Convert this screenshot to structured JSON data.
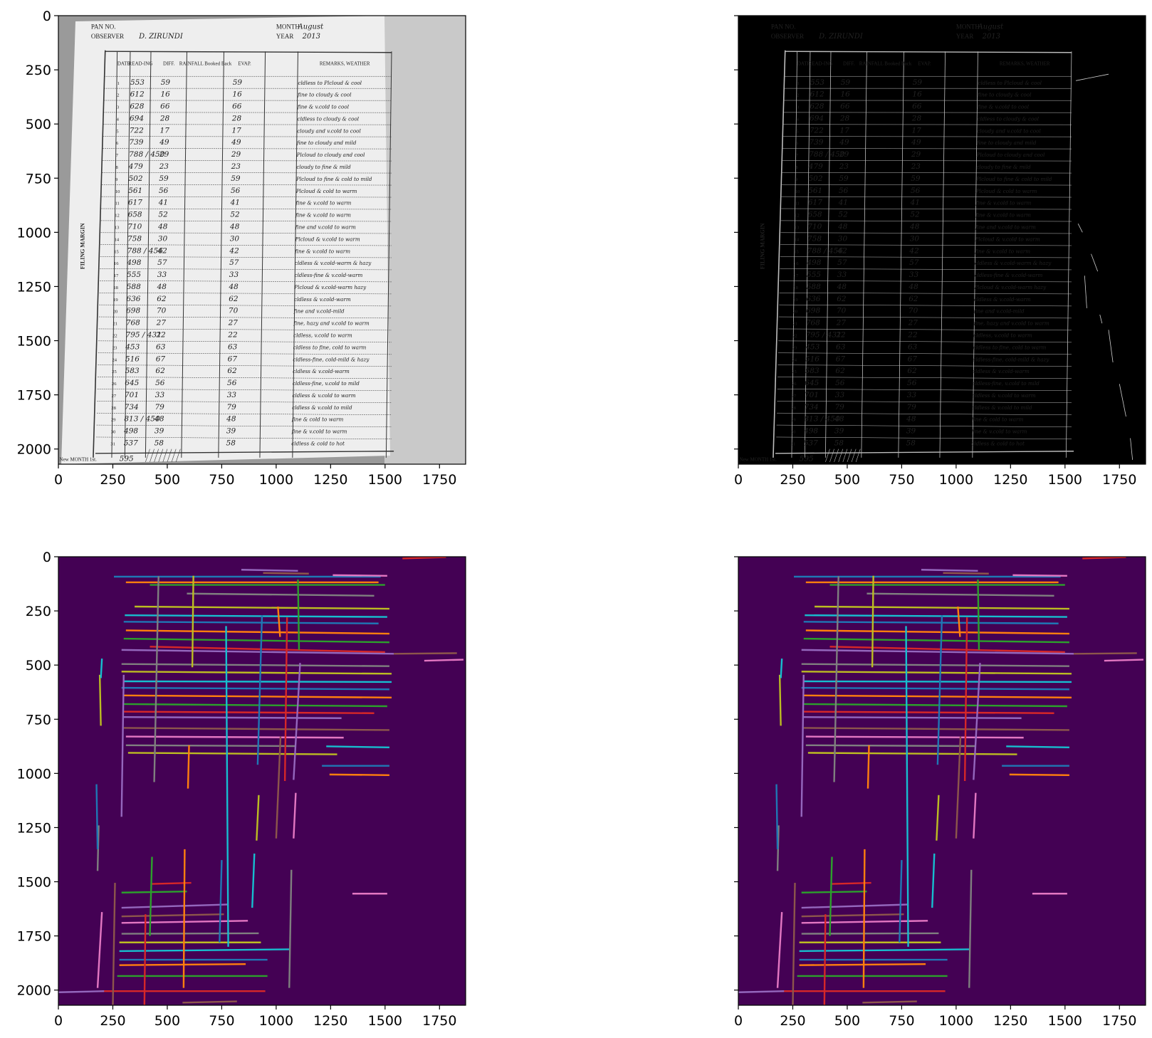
{
  "figure": {
    "layout": "2x2 grid of image panels with matplotlib pixel axes",
    "x_ticks": [
      "0",
      "250",
      "500",
      "750",
      "1000",
      "1250",
      "1500",
      "1750"
    ],
    "y_ticks": [
      "0",
      "250",
      "500",
      "750",
      "1000",
      "1250",
      "1500",
      "1750",
      "2000"
    ],
    "image_extent": {
      "width": 1870,
      "height": 2070
    },
    "panels": [
      {
        "id": "grayscale",
        "kind": "grayscale photo of a handwritten weather register sheet"
      },
      {
        "id": "edges",
        "kind": "edge-detection result, thin white edges on black"
      },
      {
        "id": "hough-lines-1",
        "kind": "detected line segments on dark purple background"
      },
      {
        "id": "hough-lines-2",
        "kind": "detected line segments on dark purple background"
      }
    ],
    "colors": {
      "line_background": "#440154",
      "edge_background": "#000000",
      "segment_palette": [
        "#1f77b4",
        "#ff7f0e",
        "#2ca02c",
        "#d62728",
        "#9467bd",
        "#8c564b",
        "#e377c2",
        "#7f7f7f",
        "#bcbd22",
        "#17becf"
      ]
    }
  },
  "document": {
    "header": {
      "pan_label": "PAN NO.",
      "month_label": "MONTH",
      "month_value": "August",
      "observer_label": "OBSERVER",
      "observer_value": "D. ZIRUNDI",
      "year_label": "YEAR",
      "year_value": "2013"
    },
    "columns": [
      "DATE",
      "READ-ING",
      "DIFF.",
      "RAINFALL Booked Back",
      "EVAP.",
      "REMARKS, WEATHER"
    ],
    "side_label": "FILING MARGIN",
    "footer": {
      "label": "New MONTH 1st.",
      "value": "595"
    },
    "rows": [
      {
        "date": "1",
        "reading": "553",
        "diff": "59",
        "evap": "59",
        "remarks": "cldless to Plcloud & cool"
      },
      {
        "date": "2",
        "reading": "612",
        "diff": "16",
        "evap": "16",
        "remarks": "fine to cloudy & cool"
      },
      {
        "date": "3",
        "reading": "628",
        "diff": "66",
        "evap": "66",
        "remarks": "fine & v.cold to cool"
      },
      {
        "date": "4",
        "reading": "694",
        "diff": "28",
        "evap": "28",
        "remarks": "cldless to cloudy & cool"
      },
      {
        "date": "5",
        "reading": "722",
        "diff": "17",
        "evap": "17",
        "remarks": "cloudy and v.cold to cool"
      },
      {
        "date": "6",
        "reading": "739",
        "diff": "49",
        "evap": "49",
        "remarks": "fine to cloudy and mild"
      },
      {
        "date": "7",
        "reading": "788 / 450",
        "diff": "29",
        "evap": "29",
        "remarks": "Plcloud to cloudy and cool"
      },
      {
        "date": "8",
        "reading": "479",
        "diff": "23",
        "evap": "23",
        "remarks": "cloudy to fine & mild"
      },
      {
        "date": "9",
        "reading": "502",
        "diff": "59",
        "evap": "59",
        "remarks": "Plcloud to fine & cold to mild"
      },
      {
        "date": "10",
        "reading": "561",
        "diff": "56",
        "evap": "56",
        "remarks": "Plcloud & cold to warm"
      },
      {
        "date": "11",
        "reading": "617",
        "diff": "41",
        "evap": "41",
        "remarks": "fine & v.cold to warm"
      },
      {
        "date": "12",
        "reading": "658",
        "diff": "52",
        "evap": "52",
        "remarks": "fine & v.cold to warm"
      },
      {
        "date": "13",
        "reading": "710",
        "diff": "48",
        "evap": "48",
        "remarks": "fine and v.cold to warm"
      },
      {
        "date": "14",
        "reading": "758",
        "diff": "30",
        "evap": "30",
        "remarks": "Plcloud & v.cold to warm"
      },
      {
        "date": "15",
        "reading": "788 / 456",
        "diff": "42",
        "evap": "42",
        "remarks": "fine & v.cold to warm"
      },
      {
        "date": "16",
        "reading": "498",
        "diff": "57",
        "evap": "57",
        "remarks": "cldless & v.cold-warm & hazy"
      },
      {
        "date": "17",
        "reading": "555",
        "diff": "33",
        "evap": "33",
        "remarks": "cldless-fine & v.cold-warm"
      },
      {
        "date": "18",
        "reading": "588",
        "diff": "48",
        "evap": "48",
        "remarks": "Plcloud & v.cold-warm hazy"
      },
      {
        "date": "19",
        "reading": "636",
        "diff": "62",
        "evap": "62",
        "remarks": "cldless & v.cold-warm"
      },
      {
        "date": "20",
        "reading": "698",
        "diff": "70",
        "evap": "70",
        "remarks": "fine and v.cold-mild"
      },
      {
        "date": "21",
        "reading": "768",
        "diff": "27",
        "evap": "27",
        "remarks": "fine, hazy and v.cold to warm"
      },
      {
        "date": "22",
        "reading": "795 / 431",
        "diff": "22",
        "evap": "22",
        "remarks": "cldless, v.cold to warm"
      },
      {
        "date": "23",
        "reading": "453",
        "diff": "63",
        "evap": "63",
        "remarks": "cldless to fine, cold to warm"
      },
      {
        "date": "24",
        "reading": "516",
        "diff": "67",
        "evap": "67",
        "remarks": "cldless-fine, cold-mild & hazy"
      },
      {
        "date": "25",
        "reading": "583",
        "diff": "62",
        "evap": "62",
        "remarks": "cldless & v.cold-warm"
      },
      {
        "date": "26",
        "reading": "645",
        "diff": "56",
        "evap": "56",
        "remarks": "cldless-fine, v.cold to mild"
      },
      {
        "date": "27",
        "reading": "701",
        "diff": "33",
        "evap": "33",
        "remarks": "cldless & v.cold to warm"
      },
      {
        "date": "28",
        "reading": "734",
        "diff": "79",
        "evap": "79",
        "remarks": "cldless & v.cold to mild"
      },
      {
        "date": "29",
        "reading": "813 / 450",
        "diff": "48",
        "evap": "48",
        "remarks": "fine & cold to warm"
      },
      {
        "date": "30",
        "reading": "498",
        "diff": "39",
        "evap": "39",
        "remarks": "fine & v.cold to warm"
      },
      {
        "date": "31",
        "reading": "537",
        "diff": "58",
        "evap": "58",
        "remarks": "cldless & cold to hot"
      }
    ]
  },
  "chart_data": [
    {
      "type": "image",
      "panel": "grayscale",
      "xlim": [
        0,
        1870
      ],
      "ylim": [
        2070,
        0
      ],
      "xticks": [
        0,
        250,
        500,
        750,
        1000,
        1250,
        1500,
        1750
      ],
      "yticks": [
        0,
        250,
        500,
        750,
        1000,
        1250,
        1500,
        1750,
        2000
      ]
    },
    {
      "type": "image",
      "panel": "edges",
      "xlim": [
        0,
        1870
      ],
      "ylim": [
        2070,
        0
      ],
      "xticks": [
        0,
        250,
        500,
        750,
        1000,
        1250,
        1500,
        1750
      ],
      "yticks": [
        0,
        250,
        500,
        750,
        1000,
        1250,
        1500,
        1750,
        2000
      ]
    },
    {
      "type": "line_segments",
      "panel": "hough-lines-1",
      "xlim": [
        0,
        1870
      ],
      "ylim": [
        2070,
        0
      ],
      "segments": [
        [
          255,
          92,
          1480,
          92
        ],
        [
          310,
          118,
          1470,
          118
        ],
        [
          420,
          130,
          1500,
          130
        ],
        [
          1580,
          8,
          1780,
          2
        ],
        [
          840,
          60,
          1100,
          65
        ],
        [
          940,
          75,
          1150,
          78
        ],
        [
          1260,
          85,
          1510,
          88
        ],
        [
          590,
          170,
          1450,
          180
        ],
        [
          350,
          230,
          1520,
          240
        ],
        [
          305,
          270,
          1510,
          278
        ],
        [
          300,
          300,
          1470,
          308
        ],
        [
          310,
          340,
          1520,
          355
        ],
        [
          300,
          378,
          1520,
          395
        ],
        [
          420,
          415,
          1500,
          440
        ],
        [
          290,
          430,
          1540,
          448
        ],
        [
          1540,
          448,
          1830,
          445
        ],
        [
          1680,
          480,
          1860,
          475
        ],
        [
          290,
          495,
          1520,
          505
        ],
        [
          290,
          530,
          1530,
          540
        ],
        [
          300,
          575,
          1530,
          578
        ],
        [
          290,
          605,
          1520,
          612
        ],
        [
          300,
          640,
          1530,
          650
        ],
        [
          300,
          680,
          1510,
          690
        ],
        [
          295,
          715,
          1450,
          722
        ],
        [
          300,
          740,
          1300,
          745
        ],
        [
          300,
          790,
          1520,
          800
        ],
        [
          310,
          830,
          1310,
          835
        ],
        [
          310,
          870,
          1090,
          874
        ],
        [
          320,
          905,
          1280,
          912
        ],
        [
          1230,
          875,
          1520,
          880
        ],
        [
          1210,
          965,
          1520,
          965
        ],
        [
          1245,
          1005,
          1520,
          1008
        ],
        [
          290,
          1550,
          590,
          1545
        ],
        [
          430,
          1510,
          610,
          1505
        ],
        [
          290,
          1620,
          780,
          1605
        ],
        [
          290,
          1660,
          760,
          1650
        ],
        [
          290,
          1690,
          870,
          1680
        ],
        [
          290,
          1740,
          920,
          1738
        ],
        [
          280,
          1780,
          930,
          1780
        ],
        [
          280,
          1820,
          1060,
          1812
        ],
        [
          280,
          1860,
          960,
          1860
        ],
        [
          280,
          1885,
          860,
          1880
        ],
        [
          270,
          1935,
          960,
          1935
        ],
        [
          200,
          2005,
          950,
          2005
        ],
        [
          0,
          2010,
          210,
          2005
        ],
        [
          570,
          2058,
          820,
          2052
        ],
        [
          1350,
          1555,
          1510,
          1555
        ],
        [
          460,
          90,
          440,
          1040
        ],
        [
          620,
          88,
          615,
          510
        ],
        [
          770,
          320,
          780,
          1800
        ],
        [
          935,
          270,
          915,
          960
        ],
        [
          1008,
          230,
          1018,
          370
        ],
        [
          1100,
          105,
          1105,
          430
        ],
        [
          1050,
          280,
          1040,
          1035
        ],
        [
          1110,
          490,
          1080,
          1030
        ],
        [
          1020,
          830,
          1000,
          1300
        ],
        [
          1090,
          1090,
          1080,
          1300
        ],
        [
          1070,
          1445,
          1060,
          1990
        ],
        [
          920,
          1100,
          910,
          1310
        ],
        [
          900,
          1370,
          890,
          1620
        ],
        [
          750,
          1400,
          740,
          1780
        ],
        [
          580,
          1350,
          575,
          1990
        ],
        [
          430,
          1385,
          420,
          1750
        ],
        [
          400,
          1650,
          395,
          2070
        ],
        [
          300,
          545,
          290,
          1200
        ],
        [
          260,
          1505,
          250,
          2070
        ],
        [
          200,
          1640,
          180,
          1990
        ],
        [
          185,
          1240,
          180,
          1450
        ],
        [
          190,
          545,
          195,
          780
        ],
        [
          200,
          470,
          195,
          560
        ],
        [
          175,
          1050,
          180,
          1350
        ],
        [
          600,
          870,
          595,
          1070
        ]
      ]
    },
    {
      "type": "line_segments",
      "panel": "hough-lines-2",
      "xlim": [
        0,
        1870
      ],
      "ylim": [
        2070,
        0
      ],
      "segments": [
        [
          255,
          92,
          1480,
          92
        ],
        [
          310,
          118,
          1470,
          118
        ],
        [
          420,
          130,
          1500,
          130
        ],
        [
          1580,
          8,
          1780,
          2
        ],
        [
          840,
          60,
          1100,
          65
        ],
        [
          940,
          75,
          1150,
          78
        ],
        [
          1260,
          85,
          1510,
          88
        ],
        [
          590,
          170,
          1450,
          180
        ],
        [
          350,
          230,
          1520,
          240
        ],
        [
          305,
          270,
          1510,
          278
        ],
        [
          300,
          300,
          1470,
          308
        ],
        [
          310,
          340,
          1520,
          355
        ],
        [
          300,
          378,
          1520,
          395
        ],
        [
          420,
          415,
          1500,
          440
        ],
        [
          290,
          430,
          1540,
          448
        ],
        [
          1540,
          448,
          1830,
          445
        ],
        [
          1680,
          480,
          1860,
          475
        ],
        [
          290,
          495,
          1520,
          505
        ],
        [
          290,
          530,
          1530,
          540
        ],
        [
          300,
          575,
          1530,
          578
        ],
        [
          290,
          605,
          1520,
          612
        ],
        [
          300,
          640,
          1530,
          650
        ],
        [
          300,
          680,
          1510,
          690
        ],
        [
          295,
          715,
          1450,
          722
        ],
        [
          300,
          740,
          1300,
          745
        ],
        [
          300,
          790,
          1520,
          800
        ],
        [
          310,
          830,
          1310,
          835
        ],
        [
          310,
          870,
          1090,
          874
        ],
        [
          320,
          905,
          1280,
          912
        ],
        [
          1230,
          875,
          1520,
          880
        ],
        [
          1210,
          965,
          1520,
          965
        ],
        [
          1245,
          1005,
          1520,
          1008
        ],
        [
          290,
          1550,
          590,
          1545
        ],
        [
          430,
          1510,
          610,
          1505
        ],
        [
          290,
          1620,
          780,
          1605
        ],
        [
          290,
          1660,
          760,
          1650
        ],
        [
          290,
          1690,
          870,
          1680
        ],
        [
          290,
          1740,
          920,
          1738
        ],
        [
          280,
          1780,
          930,
          1780
        ],
        [
          280,
          1820,
          1060,
          1812
        ],
        [
          280,
          1860,
          960,
          1860
        ],
        [
          280,
          1885,
          860,
          1880
        ],
        [
          270,
          1935,
          960,
          1935
        ],
        [
          200,
          2005,
          950,
          2005
        ],
        [
          0,
          2010,
          210,
          2005
        ],
        [
          570,
          2058,
          820,
          2052
        ],
        [
          1350,
          1555,
          1510,
          1555
        ],
        [
          460,
          90,
          440,
          1040
        ],
        [
          620,
          88,
          615,
          510
        ],
        [
          770,
          320,
          780,
          1800
        ],
        [
          935,
          270,
          915,
          960
        ],
        [
          1008,
          230,
          1018,
          370
        ],
        [
          1100,
          105,
          1105,
          430
        ],
        [
          1050,
          280,
          1040,
          1035
        ],
        [
          1110,
          490,
          1080,
          1030
        ],
        [
          1020,
          830,
          1000,
          1300
        ],
        [
          1090,
          1090,
          1080,
          1300
        ],
        [
          1070,
          1445,
          1060,
          1990
        ],
        [
          920,
          1100,
          910,
          1310
        ],
        [
          900,
          1370,
          890,
          1620
        ],
        [
          750,
          1400,
          740,
          1780
        ],
        [
          580,
          1350,
          575,
          1990
        ],
        [
          430,
          1385,
          420,
          1750
        ],
        [
          400,
          1650,
          395,
          2070
        ],
        [
          300,
          545,
          290,
          1200
        ],
        [
          260,
          1505,
          250,
          2070
        ],
        [
          200,
          1640,
          180,
          1990
        ],
        [
          185,
          1240,
          180,
          1450
        ],
        [
          190,
          545,
          195,
          780
        ],
        [
          200,
          470,
          195,
          560
        ],
        [
          175,
          1050,
          180,
          1350
        ],
        [
          600,
          870,
          595,
          1070
        ]
      ]
    }
  ]
}
